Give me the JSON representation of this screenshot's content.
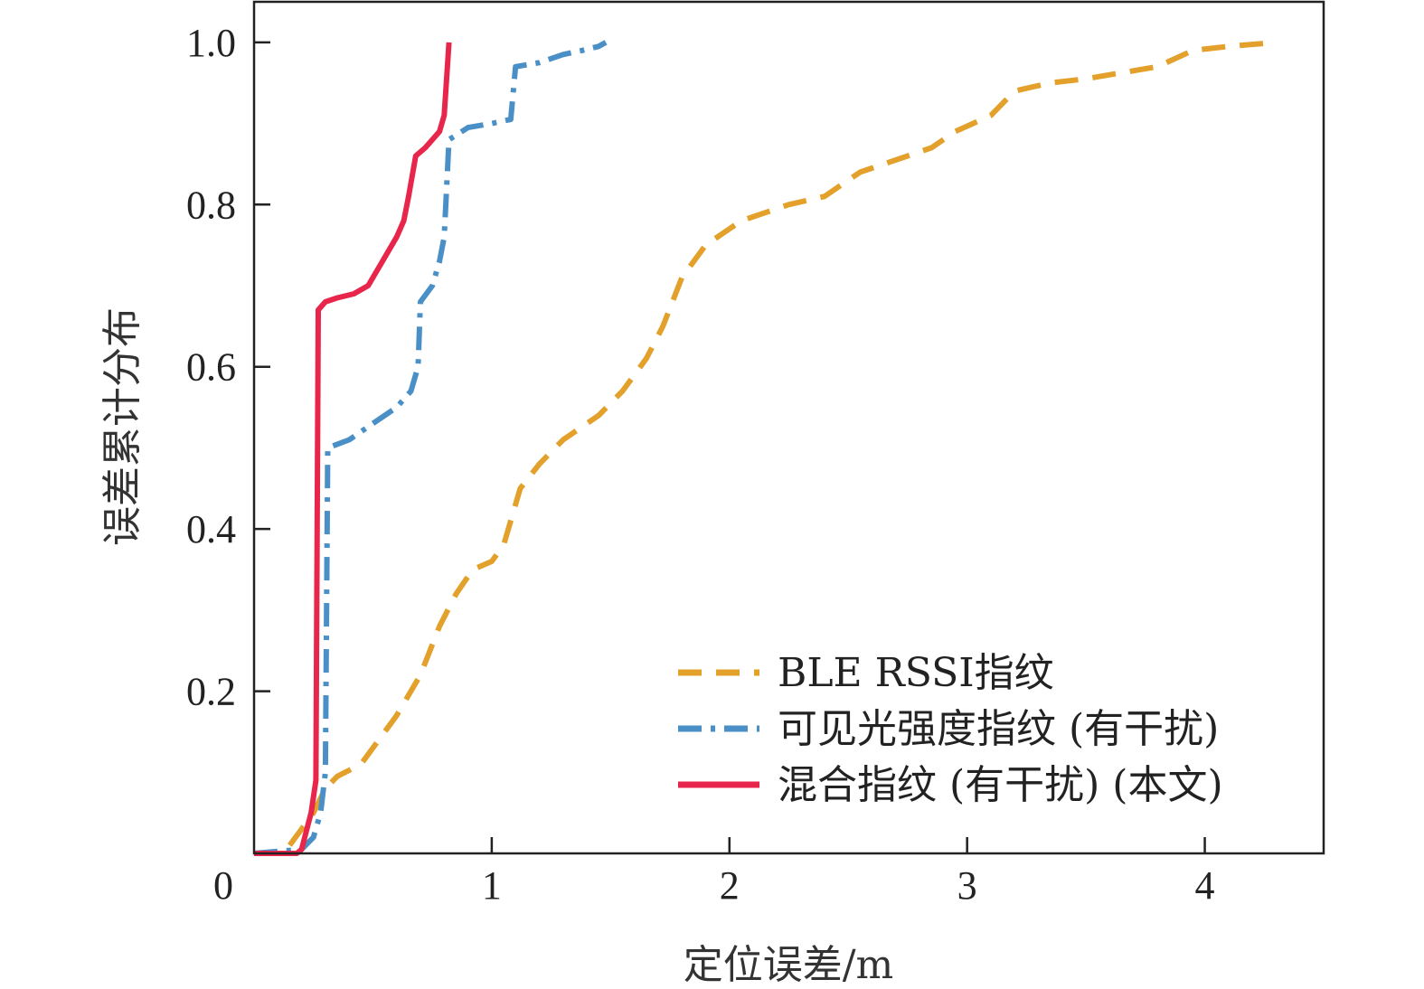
{
  "chart_data": {
    "type": "line",
    "title": "",
    "xlabel": "定位误差/m",
    "ylabel": "误差累计分布",
    "xlim": [
      0,
      4.5
    ],
    "ylim": [
      0,
      1.05
    ],
    "x_ticks": [
      {
        "value": 0,
        "label": "0"
      },
      {
        "value": 1,
        "label": "1"
      },
      {
        "value": 2,
        "label": "2"
      },
      {
        "value": 3,
        "label": "3"
      },
      {
        "value": 4,
        "label": "4"
      }
    ],
    "y_ticks": [
      {
        "value": 0.2,
        "label": "0.2"
      },
      {
        "value": 0.4,
        "label": "0.4"
      },
      {
        "value": 0.6,
        "label": "0.6"
      },
      {
        "value": 0.8,
        "label": "0.8"
      },
      {
        "value": 1.0,
        "label": "1.0"
      }
    ],
    "grid": false,
    "legend_position": "bottom-right",
    "series": [
      {
        "name": "BLE RSSI指纹",
        "style": "dashed",
        "color": "#E3A02B",
        "points": [
          [
            0.15,
            0.01
          ],
          [
            0.2,
            0.03
          ],
          [
            0.25,
            0.05
          ],
          [
            0.3,
            0.08
          ],
          [
            0.35,
            0.095
          ],
          [
            0.45,
            0.11
          ],
          [
            0.5,
            0.13
          ],
          [
            0.6,
            0.17
          ],
          [
            0.7,
            0.22
          ],
          [
            0.78,
            0.28
          ],
          [
            0.85,
            0.32
          ],
          [
            0.92,
            0.35
          ],
          [
            1.0,
            0.36
          ],
          [
            1.05,
            0.38
          ],
          [
            1.12,
            0.45
          ],
          [
            1.2,
            0.48
          ],
          [
            1.3,
            0.51
          ],
          [
            1.45,
            0.54
          ],
          [
            1.55,
            0.57
          ],
          [
            1.65,
            0.61
          ],
          [
            1.72,
            0.65
          ],
          [
            1.8,
            0.71
          ],
          [
            1.9,
            0.75
          ],
          [
            2.05,
            0.78
          ],
          [
            2.15,
            0.79
          ],
          [
            2.25,
            0.8
          ],
          [
            2.4,
            0.81
          ],
          [
            2.55,
            0.84
          ],
          [
            2.75,
            0.86
          ],
          [
            2.85,
            0.87
          ],
          [
            2.95,
            0.89
          ],
          [
            3.1,
            0.91
          ],
          [
            3.2,
            0.94
          ],
          [
            3.35,
            0.95
          ],
          [
            3.5,
            0.955
          ],
          [
            3.6,
            0.96
          ],
          [
            3.8,
            0.97
          ],
          [
            3.95,
            0.99
          ],
          [
            4.1,
            0.995
          ],
          [
            4.3,
            1.0
          ]
        ]
      },
      {
        "name": "可见光强度指纹 (有干扰)",
        "style": "dashdot",
        "color": "#4A90C6",
        "points": [
          [
            0.0,
            0.0
          ],
          [
            0.2,
            0.005
          ],
          [
            0.25,
            0.02
          ],
          [
            0.28,
            0.05
          ],
          [
            0.3,
            0.1
          ],
          [
            0.31,
            0.5
          ],
          [
            0.4,
            0.51
          ],
          [
            0.5,
            0.53
          ],
          [
            0.6,
            0.55
          ],
          [
            0.66,
            0.57
          ],
          [
            0.69,
            0.6
          ],
          [
            0.7,
            0.68
          ],
          [
            0.75,
            0.7
          ],
          [
            0.78,
            0.73
          ],
          [
            0.8,
            0.76
          ],
          [
            0.82,
            0.88
          ],
          [
            0.9,
            0.895
          ],
          [
            1.0,
            0.9
          ],
          [
            1.08,
            0.905
          ],
          [
            1.1,
            0.97
          ],
          [
            1.2,
            0.975
          ],
          [
            1.3,
            0.985
          ],
          [
            1.38,
            0.99
          ],
          [
            1.45,
            0.995
          ],
          [
            1.48,
            1.0
          ]
        ]
      },
      {
        "name": "混合指纹 (有干扰) (本文)",
        "style": "solid",
        "color": "#E8254A",
        "points": [
          [
            0.0,
            0.0
          ],
          [
            0.18,
            0.0
          ],
          [
            0.2,
            0.005
          ],
          [
            0.24,
            0.05
          ],
          [
            0.26,
            0.09
          ],
          [
            0.27,
            0.67
          ],
          [
            0.3,
            0.68
          ],
          [
            0.35,
            0.685
          ],
          [
            0.42,
            0.69
          ],
          [
            0.48,
            0.7
          ],
          [
            0.52,
            0.72
          ],
          [
            0.55,
            0.735
          ],
          [
            0.6,
            0.76
          ],
          [
            0.63,
            0.78
          ],
          [
            0.65,
            0.81
          ],
          [
            0.68,
            0.86
          ],
          [
            0.72,
            0.87
          ],
          [
            0.75,
            0.88
          ],
          [
            0.78,
            0.89
          ],
          [
            0.8,
            0.91
          ],
          [
            0.82,
            1.0
          ]
        ]
      }
    ]
  }
}
